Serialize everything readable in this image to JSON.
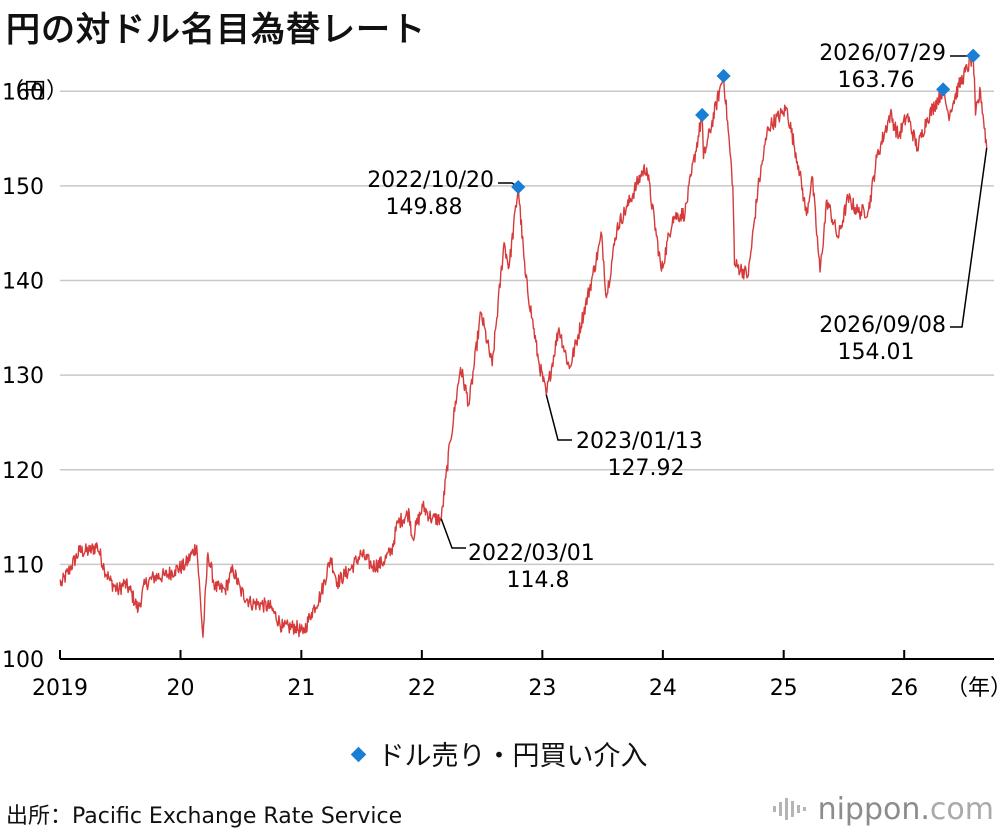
{
  "title": "円の対ドル名目為替レート",
  "legend_label": "ドル売り・円買い介入",
  "source": "出所：Pacific Exchange Rate Service",
  "brand": {
    "name": "nippon",
    "dot": ".",
    "domain": "com",
    "icon": "soundwave-icon"
  },
  "colors": {
    "line": "#d63a3a",
    "marker": "#1a7fd4",
    "grid": "#c8c8c8",
    "axis": "#000000"
  },
  "chart_data": {
    "type": "line",
    "title": "円の対ドル名目為替レート",
    "ylabel": "（円）",
    "xlabel": "（年）",
    "ylim": [
      100,
      165
    ],
    "xlim": [
      "2019-01-01",
      "2026-09-30"
    ],
    "yticks": [
      100,
      110,
      120,
      130,
      140,
      150,
      160
    ],
    "xticks": [
      {
        "date": "2019-01-01",
        "label": "2019"
      },
      {
        "date": "2020-01-01",
        "label": "20"
      },
      {
        "date": "2021-01-01",
        "label": "21"
      },
      {
        "date": "2022-01-01",
        "label": "22"
      },
      {
        "date": "2023-01-01",
        "label": "23"
      },
      {
        "date": "2024-01-01",
        "label": "24"
      },
      {
        "date": "2025-01-01",
        "label": "25"
      },
      {
        "date": "2026-01-01",
        "label": "26"
      }
    ],
    "grid": true,
    "legend_position": "bottom-center",
    "series": [
      {
        "name": "",
        "points": [
          [
            "2019-01-02",
            108.4
          ],
          [
            "2019-01-03",
            107.8
          ],
          [
            "2019-02-01",
            109.6
          ],
          [
            "2019-03-01",
            111.4
          ],
          [
            "2019-04-01",
            111.4
          ],
          [
            "2019-04-24",
            112.0
          ],
          [
            "2019-05-15",
            109.6
          ],
          [
            "2019-06-01",
            108.3
          ],
          [
            "2019-06-25",
            107.2
          ],
          [
            "2019-07-15",
            108.0
          ],
          [
            "2019-08-01",
            107.3
          ],
          [
            "2019-08-26",
            105.2
          ],
          [
            "2019-09-15",
            107.9
          ],
          [
            "2019-10-15",
            108.7
          ],
          [
            "2019-11-15",
            108.8
          ],
          [
            "2019-12-15",
            109.4
          ],
          [
            "2020-01-15",
            109.9
          ],
          [
            "2020-02-19",
            112.0
          ],
          [
            "2020-03-09",
            102.3
          ],
          [
            "2020-03-24",
            111.2
          ],
          [
            "2020-04-15",
            107.5
          ],
          [
            "2020-05-15",
            107.3
          ],
          [
            "2020-06-08",
            109.5
          ],
          [
            "2020-07-01",
            107.2
          ],
          [
            "2020-08-01",
            105.9
          ],
          [
            "2020-09-01",
            105.8
          ],
          [
            "2020-10-01",
            105.4
          ],
          [
            "2020-11-06",
            103.3
          ],
          [
            "2020-12-15",
            103.4
          ],
          [
            "2021-01-06",
            102.7
          ],
          [
            "2021-02-01",
            104.9
          ],
          [
            "2021-03-01",
            106.8
          ],
          [
            "2021-03-31",
            110.7
          ],
          [
            "2021-04-20",
            108.1
          ],
          [
            "2021-06-01",
            109.6
          ],
          [
            "2021-07-01",
            111.1
          ],
          [
            "2021-08-05",
            109.8
          ],
          [
            "2021-09-01",
            110.1
          ],
          [
            "2021-10-01",
            111.4
          ],
          [
            "2021-10-20",
            114.4
          ],
          [
            "2021-11-24",
            115.4
          ],
          [
            "2021-12-03",
            112.8
          ],
          [
            "2022-01-04",
            116.1
          ],
          [
            "2022-02-01",
            114.8
          ],
          [
            "2022-03-01",
            114.8
          ],
          [
            "2022-03-28",
            123.0
          ],
          [
            "2022-04-28",
            130.8
          ],
          [
            "2022-05-24",
            126.9
          ],
          [
            "2022-06-29",
            136.6
          ],
          [
            "2022-08-02",
            131.0
          ],
          [
            "2022-09-07",
            144.0
          ],
          [
            "2022-09-22",
            141.4
          ],
          [
            "2022-10-20",
            149.88
          ],
          [
            "2022-11-10",
            140.7
          ],
          [
            "2022-12-01",
            136.0
          ],
          [
            "2022-12-20",
            131.6
          ],
          [
            "2023-01-13",
            127.92
          ],
          [
            "2023-02-20",
            135.0
          ],
          [
            "2023-03-24",
            130.7
          ],
          [
            "2023-04-20",
            134.3
          ],
          [
            "2023-05-30",
            140.0
          ],
          [
            "2023-06-30",
            144.8
          ],
          [
            "2023-07-14",
            138.2
          ],
          [
            "2023-08-15",
            145.6
          ],
          [
            "2023-09-15",
            147.8
          ],
          [
            "2023-10-31",
            151.5
          ],
          [
            "2023-11-13",
            151.9
          ],
          [
            "2023-12-28",
            141.0
          ],
          [
            "2024-01-31",
            146.7
          ],
          [
            "2024-03-08",
            147.1
          ],
          [
            "2024-03-28",
            151.3
          ],
          [
            "2024-04-29",
            157.5
          ],
          [
            "2024-05-03",
            152.9
          ],
          [
            "2024-06-26",
            160.8
          ],
          [
            "2024-07-03",
            161.62
          ],
          [
            "2024-07-31",
            150.0
          ],
          [
            "2024-08-05",
            141.7
          ],
          [
            "2024-09-16",
            140.6
          ],
          [
            "2024-10-15",
            149.7
          ],
          [
            "2024-11-15",
            156.2
          ],
          [
            "2024-12-31",
            157.8
          ],
          [
            "2025-01-10",
            158.2
          ],
          [
            "2025-02-15",
            152.1
          ],
          [
            "2025-03-11",
            146.9
          ],
          [
            "2025-03-28",
            151.0
          ],
          [
            "2025-04-21",
            140.9
          ],
          [
            "2025-05-12",
            148.5
          ],
          [
            "2025-06-15",
            144.5
          ],
          [
            "2025-07-15",
            148.7
          ],
          [
            "2025-08-15",
            147.2
          ],
          [
            "2025-09-15",
            147.4
          ],
          [
            "2025-10-10",
            153.0
          ],
          [
            "2025-11-20",
            157.6
          ],
          [
            "2025-12-15",
            155.2
          ],
          [
            "2026-01-10",
            157.5
          ],
          [
            "2026-02-10",
            154.0
          ],
          [
            "2026-03-10",
            157.0
          ],
          [
            "2026-04-29",
            160.2
          ],
          [
            "2026-05-15",
            157.5
          ],
          [
            "2026-06-15",
            160.5
          ],
          [
            "2026-07-29",
            163.76
          ],
          [
            "2026-08-05",
            157.5
          ],
          [
            "2026-08-20",
            160.0
          ],
          [
            "2026-09-08",
            154.01
          ]
        ]
      }
    ],
    "interventions": [
      {
        "date": "2022-10-20",
        "value": 149.88
      },
      {
        "date": "2024-04-29",
        "value": 157.5
      },
      {
        "date": "2024-07-03",
        "value": 161.62
      },
      {
        "date": "2026-04-29",
        "value": 160.2
      },
      {
        "date": "2026-07-29",
        "value": 163.76
      }
    ],
    "annotations": [
      {
        "id": "ann-2022-03-01",
        "date": "2022/03/01",
        "value": "114.8",
        "at": "2022-03-01",
        "y": 114.8
      },
      {
        "id": "ann-2022-10-20",
        "date": "2022/10/20",
        "value": "149.88",
        "at": "2022-10-20",
        "y": 149.88
      },
      {
        "id": "ann-2023-01-13",
        "date": "2023/01/13",
        "value": "127.92",
        "at": "2023-01-13",
        "y": 127.92
      },
      {
        "id": "ann-2026-07-29",
        "date": "2026/07/29",
        "value": "163.76",
        "at": "2026-07-29",
        "y": 163.76
      },
      {
        "id": "ann-2026-09-08",
        "date": "2026/09/08",
        "value": "154.01",
        "at": "2026-09-08",
        "y": 154.01
      }
    ]
  }
}
